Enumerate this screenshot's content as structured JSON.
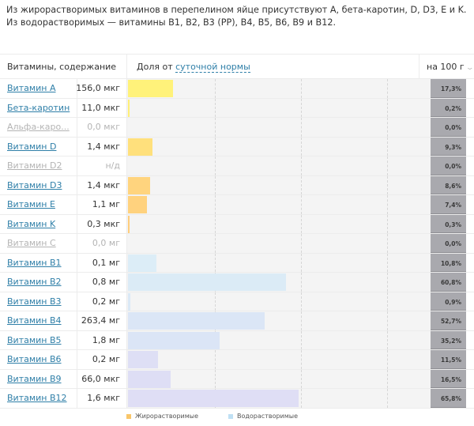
{
  "intro_text": "Из жирорастворимых витаминов в перепелином яйце присутствуют A, бета-каротин, D, D3, E и K. Из водорастворимых — витамины B1, B2, B3 (PP), B4, B5, B6, B9 и B12.",
  "header": {
    "name_col": "Витамины, содержание",
    "share_prefix": "Доля от",
    "share_link": "суточной нормы",
    "per_select": "на 100 г"
  },
  "colors": {
    "fat_soluble": "#f9c66a",
    "water_soluble": "#bfe0f4",
    "badge": "#a9a9ae",
    "link": "#2f7fa8"
  },
  "rows": [
    {
      "name": "Витамин A",
      "value": "156,0 мкг",
      "pct_label": "17,3%",
      "pct": 17.3,
      "group": "fat",
      "color": "#fff27a",
      "muted": false
    },
    {
      "name": "Бета-каротин",
      "value": "11,0 мкг",
      "pct_label": "0,2%",
      "pct": 0.2,
      "group": "fat",
      "color": "#ffef78",
      "muted": false
    },
    {
      "name": "Альфа-каро...",
      "value": "0,0 мкг",
      "pct_label": "0,0%",
      "pct": 0.0,
      "group": "fat",
      "color": "#ffec7a",
      "muted": true
    },
    {
      "name": "Витамин D",
      "value": "1,4 мкг",
      "pct_label": "9,3%",
      "pct": 9.3,
      "group": "fat",
      "color": "#ffe07c",
      "muted": false
    },
    {
      "name": "Витамин D2",
      "value": "н/д",
      "pct_label": "0,0%",
      "pct": 0.0,
      "group": "fat",
      "color": "#ffd87c",
      "muted": true
    },
    {
      "name": "Витамин D3",
      "value": "1,4 мкг",
      "pct_label": "8,6%",
      "pct": 8.6,
      "group": "fat",
      "color": "#ffd47e",
      "muted": false
    },
    {
      "name": "Витамин E",
      "value": "1,1 мг",
      "pct_label": "7,4%",
      "pct": 7.4,
      "group": "fat",
      "color": "#ffd27e",
      "muted": false
    },
    {
      "name": "Витамин K",
      "value": "0,3 мкг",
      "pct_label": "0,3%",
      "pct": 0.3,
      "group": "fat",
      "color": "#ffcd7c",
      "muted": false
    },
    {
      "name": "Витамин C",
      "value": "0,0 мг",
      "pct_label": "0,0%",
      "pct": 0.0,
      "group": "water",
      "color": "#dcecf6",
      "muted": true
    },
    {
      "name": "Витамин B1",
      "value": "0,1 мг",
      "pct_label": "10,8%",
      "pct": 10.8,
      "group": "water",
      "color": "#dcedf7",
      "muted": false
    },
    {
      "name": "Витамин B2",
      "value": "0,8 мг",
      "pct_label": "60,8%",
      "pct": 60.8,
      "group": "water",
      "color": "#dbebf6",
      "muted": false
    },
    {
      "name": "Витамин B3",
      "value": "0,2 мг",
      "pct_label": "0,9%",
      "pct": 0.9,
      "group": "water",
      "color": "#dae9f6",
      "muted": false
    },
    {
      "name": "Витамин B4",
      "value": "263,4 мг",
      "pct_label": "52,7%",
      "pct": 52.7,
      "group": "water",
      "color": "#dbe6f6",
      "muted": false
    },
    {
      "name": "Витамин B5",
      "value": "1,8 мг",
      "pct_label": "35,2%",
      "pct": 35.2,
      "group": "water",
      "color": "#dbe5f6",
      "muted": false
    },
    {
      "name": "Витамин B6",
      "value": "0,2 мг",
      "pct_label": "11,5%",
      "pct": 11.5,
      "group": "water",
      "color": "#dedff5",
      "muted": false
    },
    {
      "name": "Витамин B9",
      "value": "66,0 мкг",
      "pct_label": "16,5%",
      "pct": 16.5,
      "group": "water",
      "color": "#dedef5",
      "muted": false
    },
    {
      "name": "Витамин B12",
      "value": "1,6 мкг",
      "pct_label": "65,8%",
      "pct": 65.8,
      "group": "water",
      "color": "#dfdef5",
      "muted": false
    }
  ],
  "legend": [
    {
      "label": "Жирорастворимые",
      "color": "#f9c66a"
    },
    {
      "label": "Водорастворимые",
      "color": "#bfe0f4"
    }
  ]
}
